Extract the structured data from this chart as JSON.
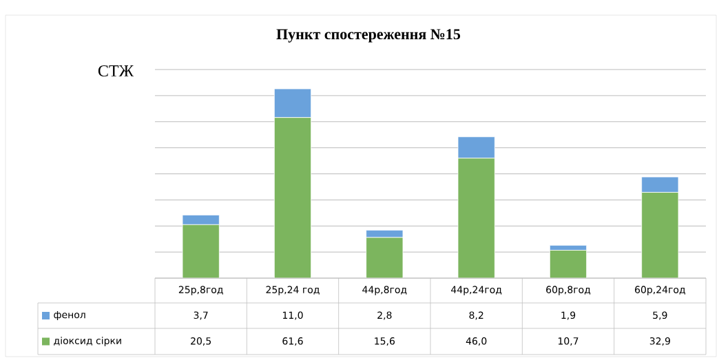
{
  "chart_data": {
    "type": "bar",
    "title": "Пункт спостереження №15",
    "ylabel": "СТЖ",
    "categories": [
      "25р,8год",
      "25р,24 год",
      "44р,8год",
      "44р,24год",
      "60р,8год",
      "60р,24год"
    ],
    "stacked": true,
    "series": [
      {
        "name": "діоксид сірки",
        "color": "#7cb55e",
        "values": [
          20.5,
          61.6,
          15.6,
          46.0,
          10.7,
          32.9
        ],
        "value_labels": [
          "20,5",
          "61,6",
          "15,6",
          "46,0",
          "10,7",
          "32,9"
        ]
      },
      {
        "name": "фенол",
        "color": "#6aa2dc",
        "values": [
          3.7,
          11.0,
          2.8,
          8.2,
          1.9,
          5.9
        ],
        "value_labels": [
          "3,7",
          "11,0",
          "2,8",
          "8,2",
          "1,9",
          "5,9"
        ]
      }
    ],
    "ylim": [
      0,
      80
    ],
    "yticks": [
      {
        "value": 0,
        "label": null
      },
      {
        "value": 10,
        "label": null
      },
      {
        "value": 20,
        "label": null
      },
      {
        "value": 30,
        "label": null
      },
      {
        "value": 40,
        "label": null
      },
      {
        "value": 50,
        "label": null
      },
      {
        "value": 60,
        "label": null
      },
      {
        "value": 70,
        "label": null
      },
      {
        "value": 80,
        "label": null
      }
    ],
    "grid": "y",
    "legend": "bottom",
    "tick_labels": "x"
  }
}
